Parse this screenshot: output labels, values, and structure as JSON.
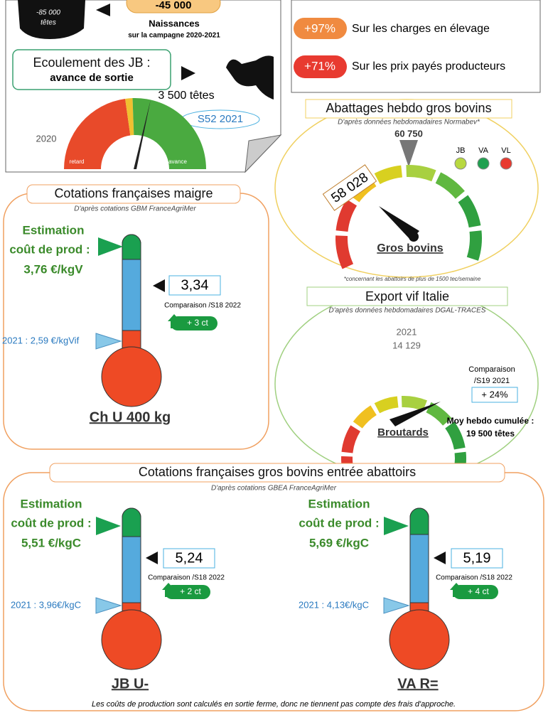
{
  "top_left": {
    "heads_loss": "-85 000",
    "heads_unit": "têtes",
    "births_change": "-45 000",
    "births_label": "Naissances",
    "births_period": "sur la campagne 2020-2021",
    "jb_title": "Ecoulement des JB :",
    "jb_subtitle": "avance de sortie",
    "jb_advance": "3 500 têtes",
    "jb_reference": "S52 2021",
    "gauge_year": "2020",
    "gauge_left": "retard",
    "gauge_right": "avance"
  },
  "top_right": {
    "items": [
      {
        "change": "+97%",
        "label": "Sur les charges en élevage"
      },
      {
        "change": "+71%",
        "label": "Sur les prix payés producteurs"
      }
    ]
  },
  "slaughter": {
    "title": "Abattages hebdo gros bovins",
    "subtitle": "D'après données hebdomadaires Normabev*",
    "reference": "60 750",
    "current": "58 028",
    "legend": [
      "JB",
      "VA",
      "VL"
    ],
    "gauge_label": "Gros bovins",
    "footnote": "*concernant les abattoirs de plus de 1500 tec/semaine"
  },
  "export": {
    "title": "Export vif Italie",
    "subtitle": "D'après données hebdomadaires DGAL-TRACES",
    "reference_year": "2021",
    "reference_value": "14 129",
    "comparison_1": "Comparaison",
    "comparison_2": "/S19 2021",
    "change": "+ 24%",
    "average_label": "Moy hebdo cumulée :",
    "average_value": "19 500 têtes",
    "gauge_label": "Broutards"
  },
  "lean": {
    "title": "Cotations françaises maigre",
    "subtitle": "D'après cotations GBM FranceAgriMer",
    "cost_1": "Estimation",
    "cost_2": "coût de prod :",
    "cost_value": "3,76 €/kgV",
    "price": "3,34",
    "comparison": "Comparaison /S18 2022",
    "change": "+ 3 ct",
    "last_year": "2021 : 2,59 €/kgVif",
    "product": "Ch U 400 kg"
  },
  "heavy": {
    "title": "Cotations françaises gros bovins entrée abattoirs",
    "subtitle": "D'après cotations GBEA FranceAgriMer",
    "items": [
      {
        "cost_1": "Estimation",
        "cost_2": "coût de prod :",
        "cost_value": "5,51 €/kgC",
        "price": "5,24",
        "comparison": "Comparaison /S18 2022",
        "change": "+ 2 ct",
        "last_year": "2021 : 3,96€/kgC",
        "product": "JB U-"
      },
      {
        "cost_1": "Estimation",
        "cost_2": "coût de prod :",
        "cost_value": "5,69 €/kgC",
        "price": "5,19",
        "comparison": "Comparaison /S18 2022",
        "change": "+ 4 ct",
        "last_year": "2021 : 4,13€/kgC",
        "product": "VA R="
      }
    ],
    "footnote": "Les coûts de production sont calculés en sortie ferme, donc ne tiennent pas compte des frais d'approche."
  }
}
